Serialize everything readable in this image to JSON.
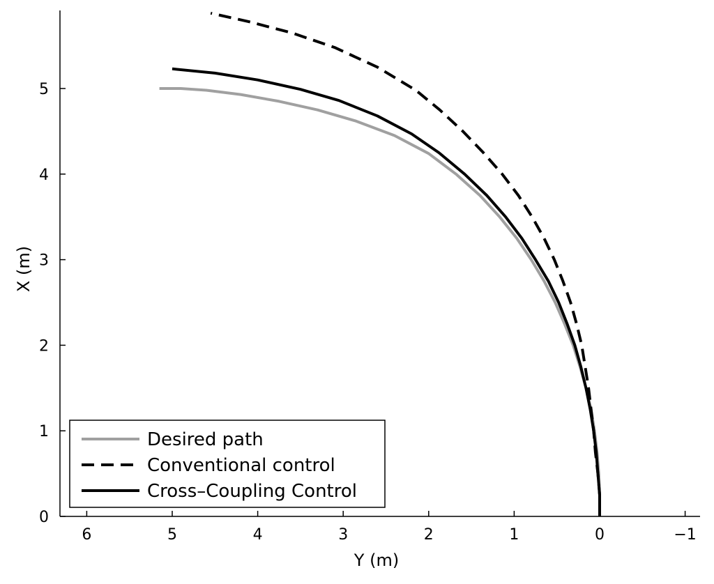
{
  "chart_data": {
    "type": "line",
    "xlabel": "Y (m)",
    "ylabel": "X (m)",
    "xlim": [
      6.3,
      -1.2
    ],
    "ylim": [
      0,
      5.9
    ],
    "x_reversed": true,
    "xticks": [
      6,
      5,
      4,
      3,
      2,
      1,
      0,
      -1
    ],
    "xtick_labels": [
      "6",
      "5",
      "4",
      "3",
      "2",
      "1",
      "0",
      "−1"
    ],
    "yticks": [
      0,
      1,
      2,
      3,
      4,
      5
    ],
    "ytick_labels": [
      "0",
      "1",
      "2",
      "3",
      "4",
      "5"
    ],
    "grid": false,
    "legend_position": "bottom-left",
    "series": [
      {
        "name": "Desired path",
        "color": "#a0a0a0",
        "style": "solid",
        "points": [
          [
            0.0,
            0.0
          ],
          [
            0.0,
            0.25
          ],
          [
            0.01,
            0.5
          ],
          [
            0.03,
            0.75
          ],
          [
            0.06,
            1.0
          ],
          [
            0.1,
            1.25
          ],
          [
            0.16,
            1.5
          ],
          [
            0.23,
            1.75
          ],
          [
            0.31,
            2.0
          ],
          [
            0.41,
            2.25
          ],
          [
            0.52,
            2.5
          ],
          [
            0.65,
            2.75
          ],
          [
            0.8,
            3.0
          ],
          [
            0.97,
            3.25
          ],
          [
            1.17,
            3.5
          ],
          [
            1.4,
            3.75
          ],
          [
            1.68,
            4.0
          ],
          [
            2.0,
            4.24
          ],
          [
            2.4,
            4.45
          ],
          [
            2.85,
            4.62
          ],
          [
            3.3,
            4.75
          ],
          [
            3.75,
            4.85
          ],
          [
            4.2,
            4.93
          ],
          [
            4.6,
            4.98
          ],
          [
            4.9,
            5.0
          ],
          [
            5.15,
            5.0
          ]
        ]
      },
      {
        "name": "Conventional control",
        "color": "#000000",
        "style": "dashed",
        "points": [
          [
            0.0,
            0.0
          ],
          [
            0.0,
            0.25
          ],
          [
            0.02,
            0.5
          ],
          [
            0.05,
            0.75
          ],
          [
            0.07,
            1.0
          ],
          [
            0.1,
            1.25
          ],
          [
            0.13,
            1.5
          ],
          [
            0.17,
            1.75
          ],
          [
            0.21,
            2.0
          ],
          [
            0.27,
            2.25
          ],
          [
            0.34,
            2.5
          ],
          [
            0.43,
            2.75
          ],
          [
            0.53,
            3.0
          ],
          [
            0.65,
            3.25
          ],
          [
            0.79,
            3.5
          ],
          [
            0.95,
            3.75
          ],
          [
            1.14,
            4.0
          ],
          [
            1.36,
            4.25
          ],
          [
            1.6,
            4.5
          ],
          [
            1.87,
            4.75
          ],
          [
            2.15,
            4.98
          ],
          [
            2.6,
            5.25
          ],
          [
            3.1,
            5.48
          ],
          [
            3.6,
            5.65
          ],
          [
            4.1,
            5.78
          ],
          [
            4.55,
            5.88
          ]
        ]
      },
      {
        "name": "Cross–Coupling Control",
        "color": "#000000",
        "style": "solid",
        "points": [
          [
            0.0,
            0.0
          ],
          [
            0.0,
            0.25
          ],
          [
            0.02,
            0.5
          ],
          [
            0.04,
            0.75
          ],
          [
            0.07,
            1.0
          ],
          [
            0.11,
            1.25
          ],
          [
            0.16,
            1.5
          ],
          [
            0.22,
            1.75
          ],
          [
            0.29,
            2.0
          ],
          [
            0.38,
            2.25
          ],
          [
            0.48,
            2.5
          ],
          [
            0.6,
            2.75
          ],
          [
            0.75,
            3.0
          ],
          [
            0.91,
            3.25
          ],
          [
            1.1,
            3.5
          ],
          [
            1.32,
            3.75
          ],
          [
            1.58,
            4.0
          ],
          [
            1.88,
            4.25
          ],
          [
            2.2,
            4.47
          ],
          [
            2.6,
            4.68
          ],
          [
            3.05,
            4.86
          ],
          [
            3.5,
            4.99
          ],
          [
            4.0,
            5.1
          ],
          [
            4.5,
            5.18
          ],
          [
            5.0,
            5.23
          ]
        ]
      }
    ]
  }
}
